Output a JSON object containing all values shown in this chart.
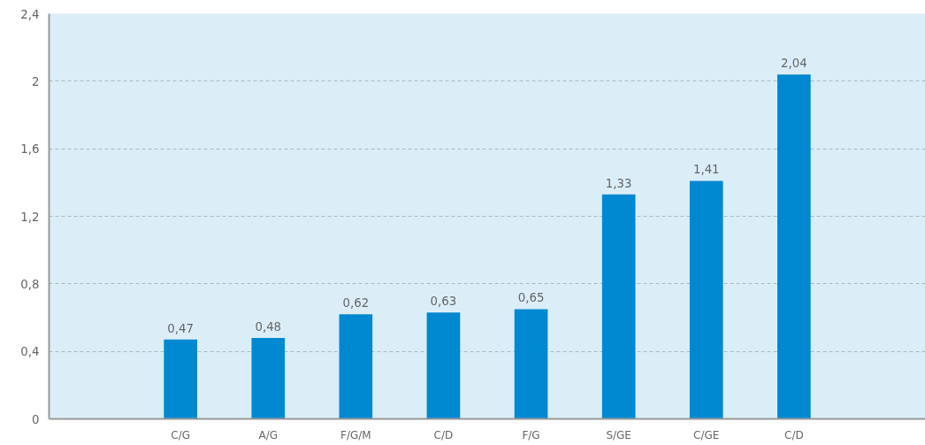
{
  "chart_data": {
    "type": "bar",
    "categories": [
      null,
      "C/G",
      "A/G",
      "F/G/M",
      "C/D",
      "F/G",
      "S/GE",
      "C/GE",
      "C/D",
      null
    ],
    "values": [
      null,
      0.47,
      0.48,
      0.62,
      0.63,
      0.65,
      1.33,
      1.41,
      2.04,
      null
    ],
    "value_labels": [
      null,
      "0,47",
      "0,48",
      "0,62",
      "0,63",
      "0,65",
      "1,33",
      "1,41",
      "2,04",
      null
    ],
    "color": "#0088d1",
    "ylim": [
      0,
      2.4
    ],
    "yticks": [
      0,
      {
        "value": 0.4,
        "label": "0,4"
      },
      {
        "value": 0.8,
        "label": "0,8"
      },
      {
        "value": 1.2,
        "label": "1,2"
      },
      {
        "value": 1.6,
        "label": "1,6"
      },
      2,
      {
        "value": 2.4,
        "label": "2,4"
      }
    ],
    "grid": "y"
  }
}
